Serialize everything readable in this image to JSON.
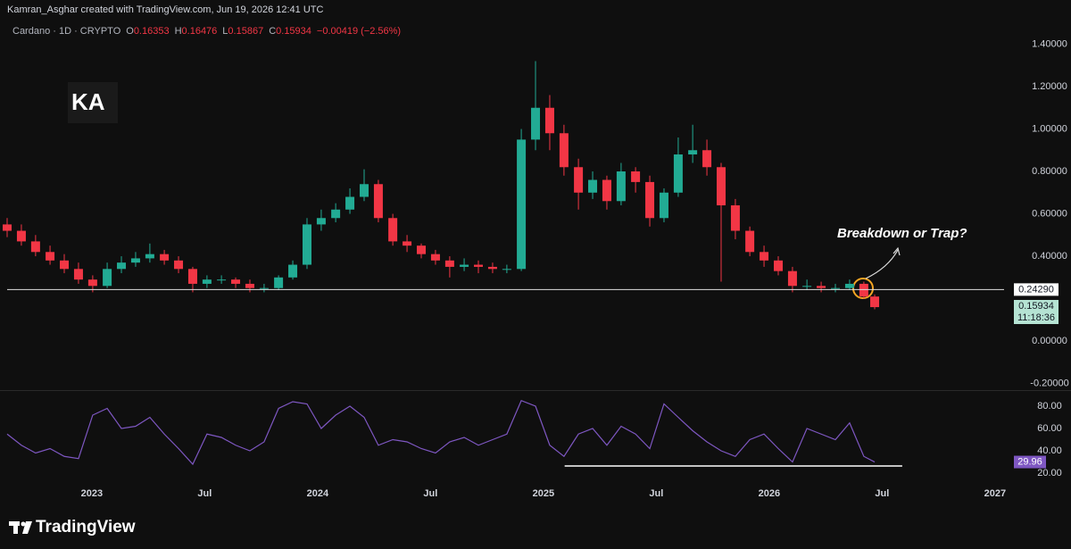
{
  "header": {
    "credit": "Kamran_Asghar created with TradingView.com, Jun 19, 2026 12:41 UTC",
    "symbol": "Cardano · 1D · CRYPTO",
    "ohlc": [
      {
        "key": "O",
        "value": "0.16353"
      },
      {
        "key": "H",
        "value": "0.16476"
      },
      {
        "key": "L",
        "value": "0.15867"
      },
      {
        "key": "C",
        "value": "0.15934"
      }
    ],
    "change": "−0.00419 (−2.56%)",
    "watermark": "KA"
  },
  "footer": {
    "brand": "TradingView"
  },
  "chart_data": [
    {
      "type": "candlestick",
      "up_color": "#22ab94",
      "down_color": "#f23645",
      "x": [
        2022.625,
        2022.688,
        2022.751,
        2022.815,
        2022.878,
        2022.941,
        2023.004,
        2023.068,
        2023.131,
        2023.194,
        2023.257,
        2023.321,
        2023.384,
        2023.447,
        2023.51,
        2023.574,
        2023.637,
        2023.7,
        2023.763,
        2023.827,
        2023.89,
        2023.953,
        2024.016,
        2024.08,
        2024.143,
        2024.206,
        2024.269,
        2024.333,
        2024.396,
        2024.459,
        2024.522,
        2024.585,
        2024.649,
        2024.712,
        2024.775,
        2024.838,
        2024.902,
        2024.965,
        2025.028,
        2025.091,
        2025.155,
        2025.218,
        2025.281,
        2025.344,
        2025.408,
        2025.471,
        2025.534,
        2025.597,
        2025.661,
        2025.724,
        2025.787,
        2025.85,
        2025.914,
        2025.977,
        2026.04,
        2026.103,
        2026.167,
        2026.23,
        2026.293,
        2026.356,
        2026.419,
        2026.467
      ],
      "open": [
        0.55,
        0.52,
        0.47,
        0.42,
        0.38,
        0.34,
        0.29,
        0.26,
        0.34,
        0.37,
        0.39,
        0.41,
        0.38,
        0.34,
        0.27,
        0.29,
        0.29,
        0.27,
        0.25,
        0.25,
        0.3,
        0.36,
        0.55,
        0.58,
        0.62,
        0.68,
        0.74,
        0.58,
        0.47,
        0.45,
        0.41,
        0.38,
        0.35,
        0.36,
        0.35,
        0.34,
        0.34,
        0.95,
        1.1,
        0.98,
        0.82,
        0.7,
        0.76,
        0.66,
        0.8,
        0.75,
        0.58,
        0.7,
        0.88,
        0.9,
        0.82,
        0.64,
        0.52,
        0.42,
        0.38,
        0.33,
        0.26,
        0.26,
        0.25,
        0.25,
        0.27,
        0.21
      ],
      "high": [
        0.58,
        0.55,
        0.5,
        0.45,
        0.41,
        0.37,
        0.31,
        0.37,
        0.4,
        0.42,
        0.46,
        0.43,
        0.4,
        0.35,
        0.31,
        0.31,
        0.3,
        0.29,
        0.27,
        0.31,
        0.38,
        0.58,
        0.62,
        0.65,
        0.72,
        0.81,
        0.76,
        0.6,
        0.5,
        0.46,
        0.43,
        0.4,
        0.39,
        0.38,
        0.37,
        0.36,
        1.0,
        1.32,
        1.16,
        1.02,
        0.86,
        0.8,
        0.78,
        0.84,
        0.82,
        0.78,
        0.72,
        0.96,
        1.02,
        0.95,
        0.84,
        0.67,
        0.54,
        0.45,
        0.4,
        0.35,
        0.29,
        0.28,
        0.27,
        0.29,
        0.28,
        0.22
      ],
      "low": [
        0.49,
        0.45,
        0.4,
        0.36,
        0.32,
        0.27,
        0.23,
        0.25,
        0.32,
        0.35,
        0.37,
        0.36,
        0.32,
        0.23,
        0.25,
        0.27,
        0.25,
        0.23,
        0.23,
        0.24,
        0.29,
        0.34,
        0.52,
        0.56,
        0.6,
        0.66,
        0.56,
        0.45,
        0.42,
        0.39,
        0.36,
        0.3,
        0.33,
        0.32,
        0.32,
        0.32,
        0.33,
        0.9,
        0.9,
        0.78,
        0.62,
        0.67,
        0.62,
        0.64,
        0.7,
        0.54,
        0.56,
        0.68,
        0.84,
        0.78,
        0.28,
        0.48,
        0.4,
        0.35,
        0.31,
        0.23,
        0.24,
        0.23,
        0.23,
        0.24,
        0.2,
        0.15
      ],
      "close": [
        0.52,
        0.47,
        0.42,
        0.38,
        0.34,
        0.29,
        0.26,
        0.34,
        0.37,
        0.39,
        0.41,
        0.38,
        0.34,
        0.27,
        0.29,
        0.29,
        0.27,
        0.25,
        0.25,
        0.3,
        0.36,
        0.55,
        0.58,
        0.62,
        0.68,
        0.74,
        0.58,
        0.47,
        0.45,
        0.41,
        0.38,
        0.35,
        0.36,
        0.35,
        0.34,
        0.34,
        0.95,
        1.1,
        0.98,
        0.82,
        0.7,
        0.76,
        0.66,
        0.8,
        0.75,
        0.58,
        0.7,
        0.88,
        0.9,
        0.82,
        0.64,
        0.52,
        0.42,
        0.38,
        0.33,
        0.26,
        0.26,
        0.25,
        0.25,
        0.27,
        0.21,
        0.16
      ],
      "xlim": [
        2022.625,
        2027.04
      ],
      "xticks": [
        2023,
        {
          "value": 2023.5,
          "label": "Jul"
        },
        2024,
        {
          "value": 2024.5,
          "label": "Jul"
        },
        2025,
        {
          "value": 2025.5,
          "label": "Jul"
        },
        2026,
        {
          "value": 2026.5,
          "label": "Jul"
        },
        2027
      ],
      "ylim": [
        -0.227,
        1.503
      ],
      "yticks": [
        {
          "value": -0.2,
          "label": "-0.20000"
        },
        {
          "value": 0,
          "label": "0.00000"
        },
        {
          "value": 0.4,
          "label": "0.40000"
        },
        {
          "value": 0.6,
          "label": "0.60000"
        },
        {
          "value": 0.8,
          "label": "0.80000"
        },
        {
          "value": 1,
          "label": "1.00000"
        },
        {
          "value": 1.2,
          "label": "1.20000"
        },
        {
          "value": 1.4,
          "label": "1.40000"
        }
      ],
      "grid": false,
      "support": {
        "value": 0.2429,
        "label": "0.24290"
      },
      "last_price": {
        "value": 0.15934,
        "label": "0.15934"
      },
      "countdown": "11:18:36",
      "annotation": "Breakdown or Trap?"
    },
    {
      "type": "line",
      "x": [
        2022.625,
        2022.688,
        2022.751,
        2022.815,
        2022.878,
        2022.941,
        2023.004,
        2023.068,
        2023.131,
        2023.194,
        2023.257,
        2023.321,
        2023.384,
        2023.447,
        2023.51,
        2023.574,
        2023.637,
        2023.7,
        2023.763,
        2023.827,
        2023.89,
        2023.953,
        2024.016,
        2024.08,
        2024.143,
        2024.206,
        2024.269,
        2024.333,
        2024.396,
        2024.459,
        2024.522,
        2024.585,
        2024.649,
        2024.712,
        2024.775,
        2024.838,
        2024.902,
        2024.965,
        2025.028,
        2025.091,
        2025.155,
        2025.218,
        2025.281,
        2025.344,
        2025.408,
        2025.471,
        2025.534,
        2025.597,
        2025.661,
        2025.724,
        2025.787,
        2025.85,
        2025.914,
        2025.977,
        2026.04,
        2026.103,
        2026.167,
        2026.23,
        2026.293,
        2026.356,
        2026.419,
        2026.467
      ],
      "series": [
        {
          "color": "#7e57c2",
          "values": [
            55,
            45,
            38,
            42,
            35,
            33,
            72,
            78,
            60,
            62,
            70,
            55,
            42,
            28,
            55,
            52,
            45,
            40,
            48,
            78,
            84,
            82,
            60,
            72,
            80,
            70,
            45,
            50,
            48,
            42,
            38,
            48,
            52,
            45,
            50,
            55,
            85,
            80,
            45,
            35,
            55,
            60,
            45,
            62,
            55,
            42,
            82,
            70,
            58,
            48,
            40,
            35,
            50,
            55,
            42,
            30,
            60,
            55,
            50,
            65,
            35,
            29.96
          ]
        }
      ],
      "xlim": [
        2022.625,
        2027.04
      ],
      "ylim": [
        12,
        92
      ],
      "yticks": [
        {
          "value": 20,
          "label": "20.00"
        },
        {
          "value": 40,
          "label": "40.00"
        },
        {
          "value": 60,
          "label": "60.00"
        },
        {
          "value": 80,
          "label": "80.00"
        }
      ],
      "last": {
        "value": 29.96,
        "label": "29.96"
      },
      "support": {
        "from": 2025.094,
        "to": 2026.589,
        "value": 26.4
      }
    }
  ]
}
